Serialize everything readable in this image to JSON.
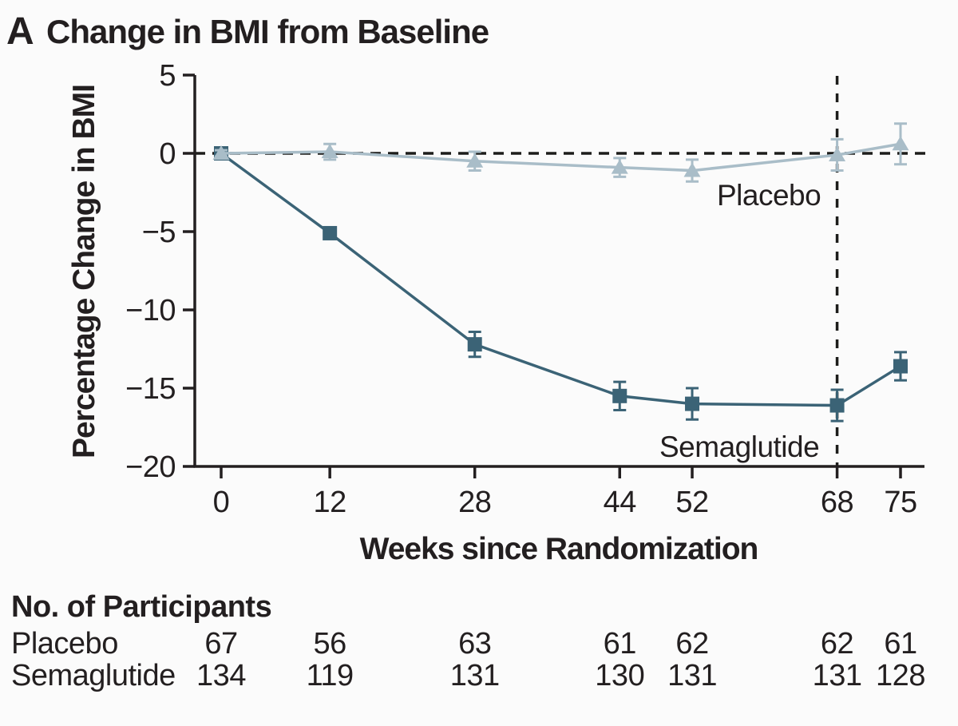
{
  "panel": {
    "letter": "A",
    "title": "Change in BMI from Baseline"
  },
  "chart_data": {
    "type": "line",
    "title": "Change in BMI from Baseline",
    "xlabel": "Weeks since Randomization",
    "ylabel": "Percentage Change in BMI",
    "xlim": [
      0,
      75
    ],
    "ylim": [
      -20,
      5
    ],
    "xticks": [
      0,
      12,
      28,
      44,
      52,
      68,
      75
    ],
    "yticks": [
      5,
      0,
      -5,
      -10,
      -15,
      -20
    ],
    "grid": false,
    "x": [
      0,
      12,
      28,
      44,
      52,
      68,
      75
    ],
    "reference_lines": {
      "horizontal_at_value": 0,
      "vertical_at_week": 68,
      "style": "dashed",
      "color": "#1d1d1b"
    },
    "series": [
      {
        "name": "Semaglutide",
        "marker": "square",
        "color": "#3b6376",
        "values": [
          0,
          -5.1,
          -12.2,
          -15.5,
          -16.0,
          -16.1,
          -13.6
        ],
        "errors": [
          0.2,
          0.3,
          0.8,
          0.9,
          1.0,
          1.0,
          0.9
        ]
      },
      {
        "name": "Placebo",
        "marker": "triangle-up",
        "color": "#a9bdc8",
        "values": [
          0,
          0.1,
          -0.5,
          -0.9,
          -1.1,
          -0.1,
          0.6
        ],
        "errors": [
          0.2,
          0.5,
          0.6,
          0.6,
          0.7,
          1.0,
          1.3
        ]
      }
    ],
    "annotations": [
      {
        "text": "Placebo",
        "near_week": 55,
        "near_value": -3.3
      },
      {
        "text": "Semaglutide",
        "near_week": 48.5,
        "near_value": -19.4
      }
    ],
    "legend_position": "inline-labels"
  },
  "participants": {
    "header": "No. of Participants",
    "weeks": [
      0,
      12,
      28,
      44,
      52,
      68,
      75
    ],
    "rows": [
      {
        "label": "Placebo",
        "counts": [
          67,
          56,
          63,
          61,
          62,
          62,
          61
        ]
      },
      {
        "label": "Semaglutide",
        "counts": [
          134,
          119,
          131,
          130,
          131,
          131,
          128
        ]
      }
    ]
  },
  "colors": {
    "semaglutide": "#3b6376",
    "placebo": "#a9bdc8",
    "axis_text": "#231f20",
    "dashed_reference": "#1d1d1b",
    "background": "#fbfbfb"
  }
}
